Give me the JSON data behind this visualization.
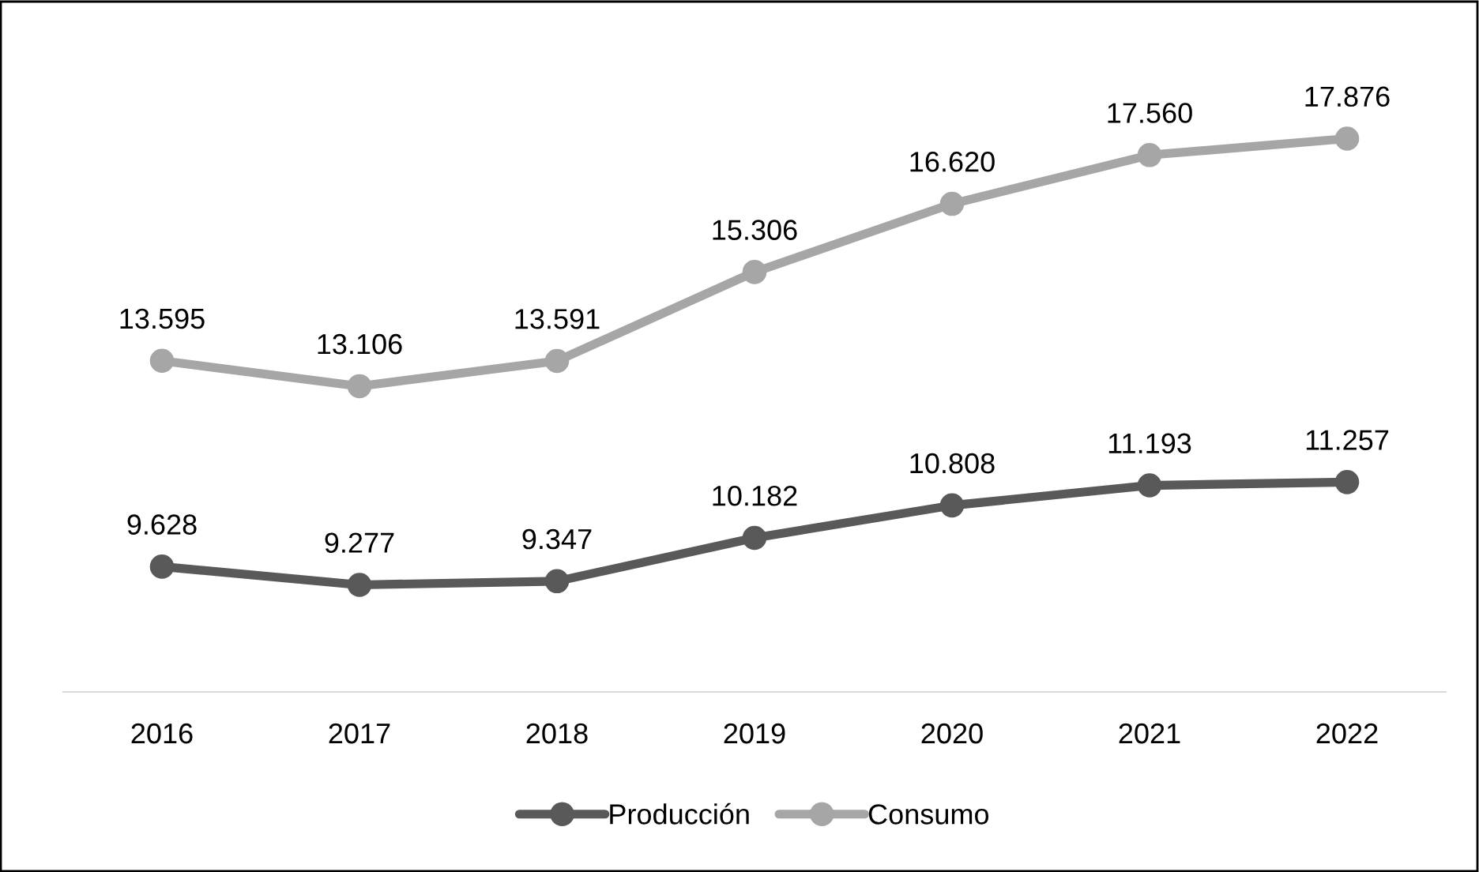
{
  "chart_data": {
    "type": "line",
    "categories": [
      "2016",
      "2017",
      "2018",
      "2019",
      "2020",
      "2021",
      "2022"
    ],
    "series": [
      {
        "name": "Producción",
        "color": "#595959",
        "values": [
          9628,
          9277,
          9347,
          10182,
          10808,
          11193,
          11257
        ],
        "value_labels": [
          "9.628",
          "9.277",
          "9.347",
          "10.182",
          "10.808",
          "11.193",
          "11.257"
        ]
      },
      {
        "name": "Consumo",
        "color": "#a6a6a6",
        "values": [
          13595,
          13106,
          13591,
          15306,
          16620,
          17560,
          17876
        ],
        "value_labels": [
          "13.595",
          "13.106",
          "13.591",
          "15.306",
          "16.620",
          "17.560",
          "17.876"
        ]
      }
    ],
    "tick_labels": "x",
    "grid": false,
    "legend": "bottom",
    "marker": "circle",
    "line_style": "solid"
  }
}
